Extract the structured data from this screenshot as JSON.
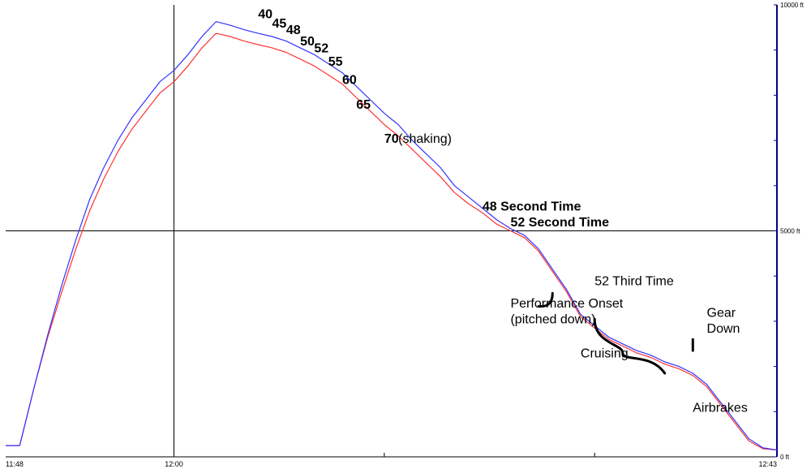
{
  "chart_data": {
    "type": "line",
    "title": "",
    "xlabel": "",
    "ylabel": "",
    "x_tick_labels": [
      "11:48",
      "12:00",
      "12:43"
    ],
    "y_tick_labels": [
      "0 ft",
      "5000 ft",
      "10000 ft"
    ],
    "ylim": [
      0,
      10000
    ],
    "grid": true,
    "series": [
      {
        "color": "#3333ff",
        "points": [
          [
            "11:48",
            250
          ],
          [
            "11:49",
            250
          ],
          [
            "11:50",
            1500
          ],
          [
            "11:51",
            2700
          ],
          [
            "11:52",
            3800
          ],
          [
            "11:53",
            4800
          ],
          [
            "11:54",
            5700
          ],
          [
            "11:55",
            6400
          ],
          [
            "11:56",
            7000
          ],
          [
            "11:57",
            7500
          ],
          [
            "11:58",
            7900
          ],
          [
            "11:59",
            8300
          ],
          [
            "12:00",
            8550
          ],
          [
            "12:01",
            8900
          ],
          [
            "12:02",
            9300
          ],
          [
            "12:03",
            9630
          ],
          [
            "12:04",
            9550
          ],
          [
            "12:05",
            9450
          ],
          [
            "12:06",
            9370
          ],
          [
            "12:07",
            9300
          ],
          [
            "12:08",
            9200
          ],
          [
            "12:09",
            9050
          ],
          [
            "12:10",
            8900
          ],
          [
            "12:11",
            8700
          ],
          [
            "12:12",
            8500
          ],
          [
            "12:13",
            8200
          ],
          [
            "12:14",
            7900
          ],
          [
            "12:15",
            7600
          ],
          [
            "12:16",
            7350
          ],
          [
            "12:17",
            7000
          ],
          [
            "12:18",
            6700
          ],
          [
            "12:19",
            6400
          ],
          [
            "12:20",
            6000
          ],
          [
            "12:21",
            5750
          ],
          [
            "12:22",
            5500
          ],
          [
            "12:23",
            5250
          ],
          [
            "12:24",
            5050
          ],
          [
            "12:25",
            4900
          ],
          [
            "12:26",
            4600
          ],
          [
            "12:27",
            4150
          ],
          [
            "12:28",
            3700
          ],
          [
            "12:29",
            3150
          ],
          [
            "12:30",
            2900
          ],
          [
            "12:31",
            2650
          ],
          [
            "12:32",
            2500
          ],
          [
            "12:33",
            2350
          ],
          [
            "12:34",
            2250
          ],
          [
            "12:35",
            2100
          ],
          [
            "12:36",
            2000
          ],
          [
            "12:37",
            1850
          ],
          [
            "12:38",
            1600
          ],
          [
            "12:39",
            1200
          ],
          [
            "12:40",
            800
          ],
          [
            "12:41",
            400
          ],
          [
            "12:42",
            200
          ],
          [
            "12:43",
            150
          ]
        ]
      },
      {
        "color": "#ff3333",
        "points": [
          [
            "11:48",
            250
          ],
          [
            "11:49",
            250
          ],
          [
            "11:50",
            1500
          ],
          [
            "11:51",
            2650
          ],
          [
            "11:52",
            3650
          ],
          [
            "11:53",
            4600
          ],
          [
            "11:54",
            5450
          ],
          [
            "11:55",
            6150
          ],
          [
            "11:56",
            6750
          ],
          [
            "11:57",
            7250
          ],
          [
            "11:58",
            7650
          ],
          [
            "11:59",
            8050
          ],
          [
            "12:00",
            8300
          ],
          [
            "12:01",
            8650
          ],
          [
            "12:02",
            9050
          ],
          [
            "12:03",
            9370
          ],
          [
            "12:04",
            9300
          ],
          [
            "12:05",
            9200
          ],
          [
            "12:06",
            9120
          ],
          [
            "12:07",
            9050
          ],
          [
            "12:08",
            8950
          ],
          [
            "12:09",
            8800
          ],
          [
            "12:10",
            8650
          ],
          [
            "12:11",
            8450
          ],
          [
            "12:12",
            8250
          ],
          [
            "12:13",
            7950
          ],
          [
            "12:14",
            7650
          ],
          [
            "12:15",
            7350
          ],
          [
            "12:16",
            7100
          ],
          [
            "12:17",
            6800
          ],
          [
            "12:18",
            6500
          ],
          [
            "12:19",
            6200
          ],
          [
            "12:20",
            5850
          ],
          [
            "12:21",
            5600
          ],
          [
            "12:22",
            5400
          ],
          [
            "12:23",
            5150
          ],
          [
            "12:24",
            5000
          ],
          [
            "12:25",
            4850
          ],
          [
            "12:26",
            4550
          ],
          [
            "12:27",
            4100
          ],
          [
            "12:28",
            3650
          ],
          [
            "12:29",
            3100
          ],
          [
            "12:30",
            2850
          ],
          [
            "12:31",
            2600
          ],
          [
            "12:32",
            2450
          ],
          [
            "12:33",
            2300
          ],
          [
            "12:34",
            2200
          ],
          [
            "12:35",
            2050
          ],
          [
            "12:36",
            1950
          ],
          [
            "12:37",
            1800
          ],
          [
            "12:38",
            1550
          ],
          [
            "12:39",
            1150
          ],
          [
            "12:40",
            750
          ],
          [
            "12:41",
            350
          ],
          [
            "12:42",
            180
          ],
          [
            "12:43",
            150
          ]
        ]
      }
    ],
    "annotations": [
      {
        "text": "40",
        "bold": true,
        "at": [
          "12:06",
          9700
        ]
      },
      {
        "text": "45",
        "bold": true,
        "at": [
          "12:07",
          9500
        ]
      },
      {
        "text": "48",
        "bold": true,
        "at": [
          "12:08",
          9350
        ]
      },
      {
        "text": "50",
        "bold": true,
        "at": [
          "12:09",
          9100
        ]
      },
      {
        "text": "52",
        "bold": true,
        "at": [
          "12:10",
          8950
        ]
      },
      {
        "text": "55",
        "bold": true,
        "at": [
          "12:11",
          8650
        ]
      },
      {
        "text": "60",
        "bold": true,
        "at": [
          "12:12",
          8250
        ]
      },
      {
        "text": "65",
        "bold": true,
        "at": [
          "12:13",
          7700
        ]
      },
      {
        "text": "70",
        "bold": true,
        "at": [
          "12:15",
          6950
        ]
      },
      {
        "text": "(shaking)",
        "bold": false,
        "at": [
          "12:16",
          6950
        ]
      },
      {
        "text": "48 Second Time",
        "bold": true,
        "at": [
          "12:22",
          5450
        ]
      },
      {
        "text": "52 Second Time",
        "bold": true,
        "at": [
          "12:24",
          5100
        ]
      },
      {
        "text": "52 Third Time",
        "bold": false,
        "at": [
          "12:30",
          3800
        ]
      },
      {
        "text": "Performance Onset",
        "bold": false,
        "at": [
          "12:24",
          3300
        ]
      },
      {
        "text": "(pitched down)",
        "bold": false,
        "at": [
          "12:24",
          2950
        ]
      },
      {
        "text": "Gear",
        "bold": false,
        "at": [
          "12:38",
          3100
        ]
      },
      {
        "text": "Down",
        "bold": false,
        "at": [
          "12:38",
          2750
        ]
      },
      {
        "text": "Cruising",
        "bold": false,
        "at": [
          "12:29",
          2200
        ]
      },
      {
        "text": "Airbrakes",
        "bold": false,
        "at": [
          "12:37",
          1000
        ]
      }
    ]
  }
}
